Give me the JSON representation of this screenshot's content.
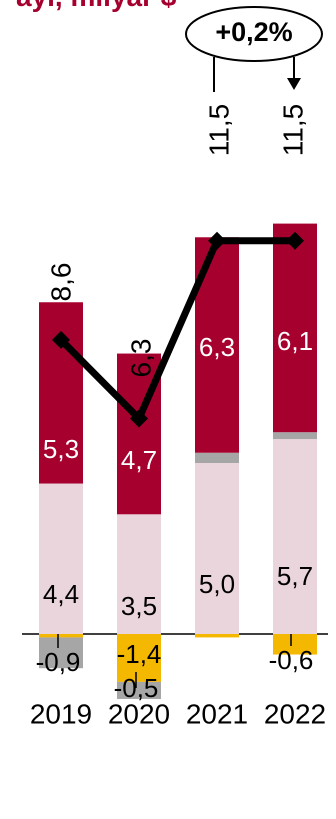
{
  "chart_data": {
    "type": "bar",
    "title": "ayı, milyar $",
    "categories": [
      "2019",
      "2020",
      "2021",
      "2022"
    ],
    "series": [
      {
        "key": "neg_gray",
        "values": [
          -0.9,
          -0.5,
          0.0,
          0.0
        ],
        "color": "#a6a6a6"
      },
      {
        "key": "neg_yellow",
        "values": [
          -0.1,
          -1.4,
          -0.1,
          -0.6
        ],
        "color": "#f4b800"
      },
      {
        "key": "light",
        "values": [
          4.4,
          3.5,
          5.0,
          5.7
        ],
        "color": "#ead5dc"
      },
      {
        "key": "gray_small",
        "values": [
          0.0,
          0.0,
          0.3,
          0.2
        ],
        "color": "#a6a6a6"
      },
      {
        "key": "dark",
        "values": [
          5.3,
          4.7,
          6.3,
          6.1
        ],
        "color": "#a6002e"
      }
    ],
    "line": {
      "values": [
        8.6,
        6.3,
        11.5,
        11.5
      ],
      "labels": [
        "8,6",
        "6,3",
        "11,5",
        "11,5"
      ],
      "color": "#000000"
    },
    "bar_labels": {
      "dark": [
        "5,3",
        "4,7",
        "6,3",
        "6,1"
      ],
      "light": [
        "4,4",
        "3,5",
        "5,0",
        "5,7"
      ],
      "negative": [
        "-0,9",
        "-1,4",
        "",
        "-0,6"
      ],
      "negative_extra": [
        "",
        "-0,5",
        "",
        ""
      ]
    },
    "annotation": {
      "text": "+0,2%"
    },
    "ylim": [
      -1.6,
      13.2
    ]
  }
}
